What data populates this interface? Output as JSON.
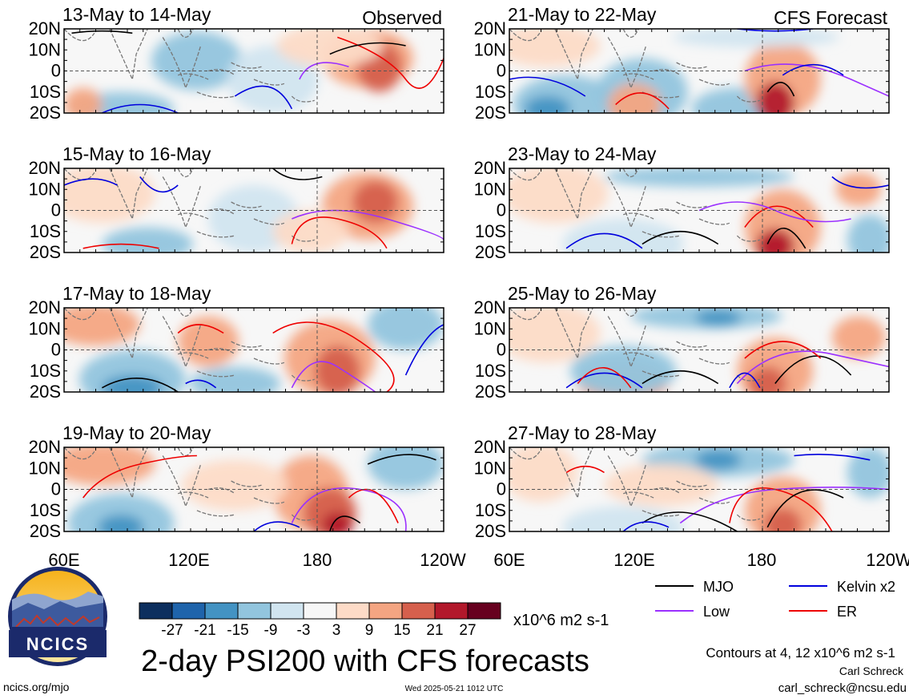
{
  "figure": {
    "title": "2-day PSI200 with CFS forecasts",
    "units": "x10^6 m2 s-1",
    "contour_note": "Contours at 4, 12 x10^6 m2 s-1",
    "author": "Carl Schreck",
    "email": "carl_schreck@ncsu.edu",
    "url": "ncics.org/mjo",
    "timestamp": "Wed 2025-05-21 1012 UTC",
    "logo_text": "NCICS"
  },
  "columns": [
    {
      "label": "Observed"
    },
    {
      "label": "CFS Forecast"
    }
  ],
  "panels": [
    {
      "col": 0,
      "row": 0,
      "title": "13-May to 14-May"
    },
    {
      "col": 0,
      "row": 1,
      "title": "15-May to 16-May"
    },
    {
      "col": 0,
      "row": 2,
      "title": "17-May to 18-May"
    },
    {
      "col": 0,
      "row": 3,
      "title": "19-May to 20-May"
    },
    {
      "col": 1,
      "row": 0,
      "title": "21-May to 22-May"
    },
    {
      "col": 1,
      "row": 1,
      "title": "23-May to 24-May"
    },
    {
      "col": 1,
      "row": 2,
      "title": "25-May to 26-May"
    },
    {
      "col": 1,
      "row": 3,
      "title": "27-May to 28-May"
    }
  ],
  "axes": {
    "lat_ticks": [
      "20N",
      "10N",
      "0",
      "10S",
      "20S"
    ],
    "lon_ticks": [
      "60E",
      "120E",
      "180",
      "120W"
    ]
  },
  "colorbar": {
    "colors": [
      "#0d2f5e",
      "#1f64ab",
      "#4393c3",
      "#92c5de",
      "#d1e5f0",
      "#f7f7f7",
      "#fddbc7",
      "#f4a582",
      "#d6604d",
      "#b2182b",
      "#67001f"
    ],
    "labels": [
      "-27",
      "-21",
      "-15",
      "-9",
      "-3",
      "3",
      "9",
      "15",
      "21",
      "27"
    ]
  },
  "legend": [
    {
      "label": "MJO",
      "color": "#000000"
    },
    {
      "label": "Kelvin x2",
      "color": "#0000dd"
    },
    {
      "label": "Low",
      "color": "#9b30ff"
    },
    {
      "label": "ER",
      "color": "#ee0000"
    }
  ]
}
